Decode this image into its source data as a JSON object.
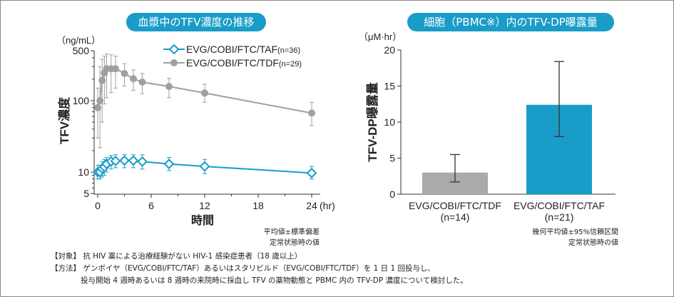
{
  "left_title": "血漿中のTFV濃度の推移",
  "right_title": "細胞（PBMC※）内のTFV-DP曝露量",
  "chart_data": [
    {
      "type": "line",
      "title": "血漿中のTFV濃度の推移",
      "xlabel": "時間",
      "x_unit": "(hr)",
      "ylabel": "TFV濃度",
      "y_unit": "（ng/mL）",
      "yscale": "log",
      "ylim": [
        5,
        500
      ],
      "xlim": [
        0,
        24
      ],
      "xticks": [
        "0",
        "6",
        "12",
        "18",
        "24"
      ],
      "yticks": [
        "5",
        "10",
        "100",
        "500"
      ],
      "legend_position": "top-right",
      "x": [
        0,
        0.25,
        0.5,
        0.75,
        1,
        1.5,
        2,
        3,
        4,
        5,
        8,
        12,
        24
      ],
      "series": [
        {
          "name": "EVG/COBI/FTC/TAF",
          "n_label": "(n=36)",
          "color": "#1a9cc8",
          "marker": "diamond-open",
          "values": [
            10,
            10,
            11.2,
            11.8,
            13,
            14.1,
            14.3,
            14.5,
            14.5,
            14,
            13,
            12,
            9.7
          ],
          "err_low": [
            8,
            8,
            8.5,
            9,
            10,
            11,
            11.5,
            11.5,
            11.5,
            11,
            10.5,
            9.5,
            8
          ],
          "err_high": [
            12.5,
            12.5,
            14,
            15,
            16,
            17,
            17.5,
            17.5,
            17.5,
            17.5,
            16,
            15,
            12
          ]
        },
        {
          "name": "EVG/COBI/FTC/TDF",
          "n_label": "(n=29)",
          "color": "#a0a0a0",
          "marker": "circle-filled",
          "values": [
            80,
            100,
            192,
            245,
            280,
            280,
            280,
            240,
            203,
            182,
            158,
            128,
            67
          ],
          "err_low": [
            30,
            22,
            50,
            90,
            110,
            130,
            150,
            160,
            140,
            125,
            110,
            95,
            45
          ],
          "err_high": [
            150,
            300,
            380,
            420,
            450,
            440,
            420,
            330,
            270,
            240,
            205,
            170,
            95
          ]
        }
      ]
    },
    {
      "type": "bar",
      "title": "細胞（PBMC※）内のTFV-DP曝露量",
      "ylabel": "TFV-DP曝露量",
      "y_unit": "（μM·hr）",
      "ylim": [
        0,
        20
      ],
      "yticks": [
        "0",
        "5",
        "10",
        "15",
        "20"
      ],
      "categories": [
        "EVG/COBI/FTC/TDF",
        "EVG/COBI/FTC/TAF"
      ],
      "n_labels": [
        "(n=14)",
        "(n=21)"
      ],
      "values": [
        3.0,
        12.4
      ],
      "err_low": [
        1.7,
        8.0
      ],
      "err_high": [
        5.5,
        18.4
      ],
      "colors": [
        "#aaaaaa",
        "#1a9cc8"
      ]
    }
  ],
  "left_note": [
    "平均値±標準偏差",
    "定常状態時の値"
  ],
  "right_note": [
    "幾何平均値±95%信頼区間",
    "定常状態時の値"
  ],
  "footnotes": [
    "【対象】 抗 HIV 薬による治療経験がない HIV-1 感染症患者（18 歳以上）",
    "【方法】 ゲンボイヤ（EVG/COBI/FTC/TAF）あるいはスタリビルド（EVG/COBI/FTC/TDF）を 1 日 1 回投与し、",
    "　　　　投与開始 4 週時あるいは 8 週時の来院時に採血し TFV の薬物動態と PBMC 内の TFV-DP 濃度について検討した。"
  ]
}
